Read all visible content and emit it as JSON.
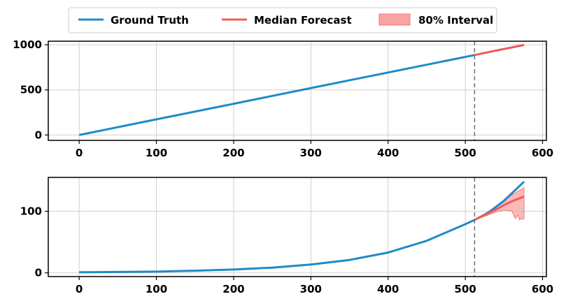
{
  "legend": {
    "placement": "top-center",
    "entries": [
      {
        "label": "Ground Truth",
        "kind": "line",
        "color": "#1f8ac8"
      },
      {
        "label": "Median Forecast",
        "kind": "line",
        "color": "#ef5b5b"
      },
      {
        "label": "80% Interval",
        "kind": "band",
        "color": "#f9a3a3"
      }
    ]
  },
  "chart_data": [
    {
      "type": "line",
      "grid": true,
      "xlim": [
        -40,
        605
      ],
      "ylim": [
        -60,
        1040
      ],
      "xticks": [
        0,
        100,
        200,
        300,
        400,
        500,
        600
      ],
      "yticks": [
        0,
        500,
        1000
      ],
      "forecast_start": 512,
      "series": [
        {
          "name": "Ground Truth",
          "color": "#1f8ac8",
          "x": [
            0,
            100,
            200,
            300,
            400,
            512
          ],
          "y": [
            0,
            173,
            346,
            520,
            693,
            887
          ]
        },
        {
          "name": "Median Forecast",
          "color": "#ef5b5b",
          "x": [
            512,
            540,
            576
          ],
          "y": [
            887,
            936,
            998
          ]
        }
      ]
    },
    {
      "type": "line",
      "grid": true,
      "xlim": [
        -40,
        605
      ],
      "ylim": [
        -6,
        155
      ],
      "xticks": [
        0,
        100,
        200,
        300,
        400,
        500,
        600
      ],
      "yticks": [
        0,
        100
      ],
      "forecast_start": 512,
      "series": [
        {
          "name": "Ground Truth",
          "color": "#1f8ac8",
          "x": [
            0,
            50,
            100,
            150,
            200,
            250,
            300,
            350,
            400,
            450,
            500,
            512,
            530,
            550,
            576
          ],
          "y": [
            1,
            1.5,
            2,
            3.5,
            5.5,
            8.5,
            13.5,
            21,
            33,
            52,
            79,
            86,
            98,
            117,
            148
          ]
        },
        {
          "name": "Median Forecast",
          "color": "#ef5b5b",
          "x": [
            512,
            525,
            540,
            550,
            560,
            570,
            576
          ],
          "y": [
            86,
            94,
            103,
            110,
            116,
            121,
            124
          ]
        },
        {
          "name": "80% Interval",
          "color": "#f9a3a3",
          "kind": "band",
          "x": [
            512,
            525,
            540,
            550,
            560,
            565,
            568,
            570,
            572,
            574,
            576
          ],
          "lower": [
            86,
            92,
            99,
            102,
            101,
            88,
            94,
            86,
            88,
            87,
            88
          ],
          "upper": [
            86,
            96,
            108,
            118,
            126,
            130,
            133,
            134,
            135,
            137,
            138
          ]
        }
      ]
    }
  ]
}
